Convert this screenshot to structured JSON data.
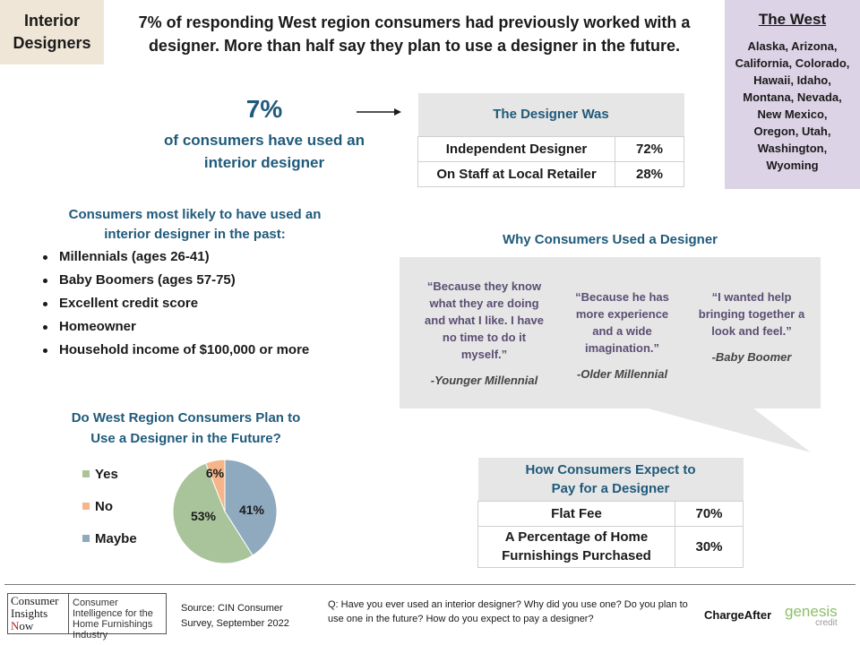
{
  "header": {
    "tag_line1": "Interior",
    "tag_line2": "Designers",
    "headline": "7% of responding West region consumers had previously worked with a designer. More than half say they plan to use a designer in the future."
  },
  "region": {
    "title": "The West",
    "states": "Alaska, Arizona, California, Colorado, Hawaii, Idaho, Montana, Nevada, New Mexico, Oregon, Utah, Washington, Wyoming"
  },
  "usage": {
    "value": "7%",
    "caption_line1": "of consumers have used an",
    "caption_line2": "interior designer"
  },
  "designer_table": {
    "title": "The Designer Was",
    "rows": [
      {
        "label": "Independent Designer",
        "value": "72%"
      },
      {
        "label": "On Staff at Local Retailer",
        "value": "28%"
      }
    ]
  },
  "likely": {
    "title_line1": "Consumers most likely to have used an",
    "title_line2": "interior designer in the past:",
    "items": [
      "Millennials (ages 26-41)",
      "Baby Boomers (ages 57-75)",
      "Excellent credit score",
      "Homeowner",
      "Household income of $100,000 or more"
    ]
  },
  "why": {
    "title": "Why Consumers Used a Designer",
    "quotes": [
      {
        "text": "“Because they know what they are doing and what I like. I have no time to do it myself.”",
        "attribution": "-Younger Millennial"
      },
      {
        "text": "“Because he has more experience and a wide imagination.”",
        "attribution": "-Older Millennial"
      },
      {
        "text": "“I wanted help bringing together a look and feel.”",
        "attribution": "-Baby Boomer"
      }
    ]
  },
  "future": {
    "title_line1": "Do West Region Consumers Plan to",
    "title_line2": "Use a Designer in the Future?"
  },
  "chart_data": {
    "type": "pie",
    "title": "Do West Region Consumers Plan to Use a Designer in the Future?",
    "categories": [
      "Yes",
      "No",
      "Maybe"
    ],
    "values": [
      53,
      6,
      41
    ],
    "data_labels": [
      "53%",
      "6%",
      "41%"
    ],
    "colors": [
      "#a9c49a",
      "#f5b588",
      "#8fa9be"
    ],
    "legend_position": "left"
  },
  "pay_table": {
    "title_line1": "How Consumers Expect to",
    "title_line2": "Pay for a Designer",
    "rows": [
      {
        "label_line1": "Flat Fee",
        "label_line2": "",
        "value": "70%"
      },
      {
        "label_line1": "A Percentage of Home",
        "label_line2": "Furnishings Purchased",
        "value": "30%"
      }
    ]
  },
  "footer": {
    "logo_left_line1": "Consumer",
    "logo_left_line2": "Insights",
    "logo_left_n": "N",
    "logo_left_rest": "ow",
    "logo_right": "Consumer Intelligence for the Home Furnishings Industry",
    "source": "Source: CIN Consumer Survey, September 2022",
    "question": "Q: Have you ever used an interior designer? Why did you use one? Do you plan to use one in the future? How do you expect to pay a designer?",
    "sponsor1": "ChargeAfter",
    "sponsor2": "genesis",
    "sponsor2_sub": "credit"
  },
  "colors": {
    "accent_blue": "#1f5a7a",
    "tag_bg": "#f0e6d8",
    "region_bg": "#dcd3e6",
    "panel_gray": "#e6e6e6",
    "quote_purple": "#5a4e72"
  }
}
